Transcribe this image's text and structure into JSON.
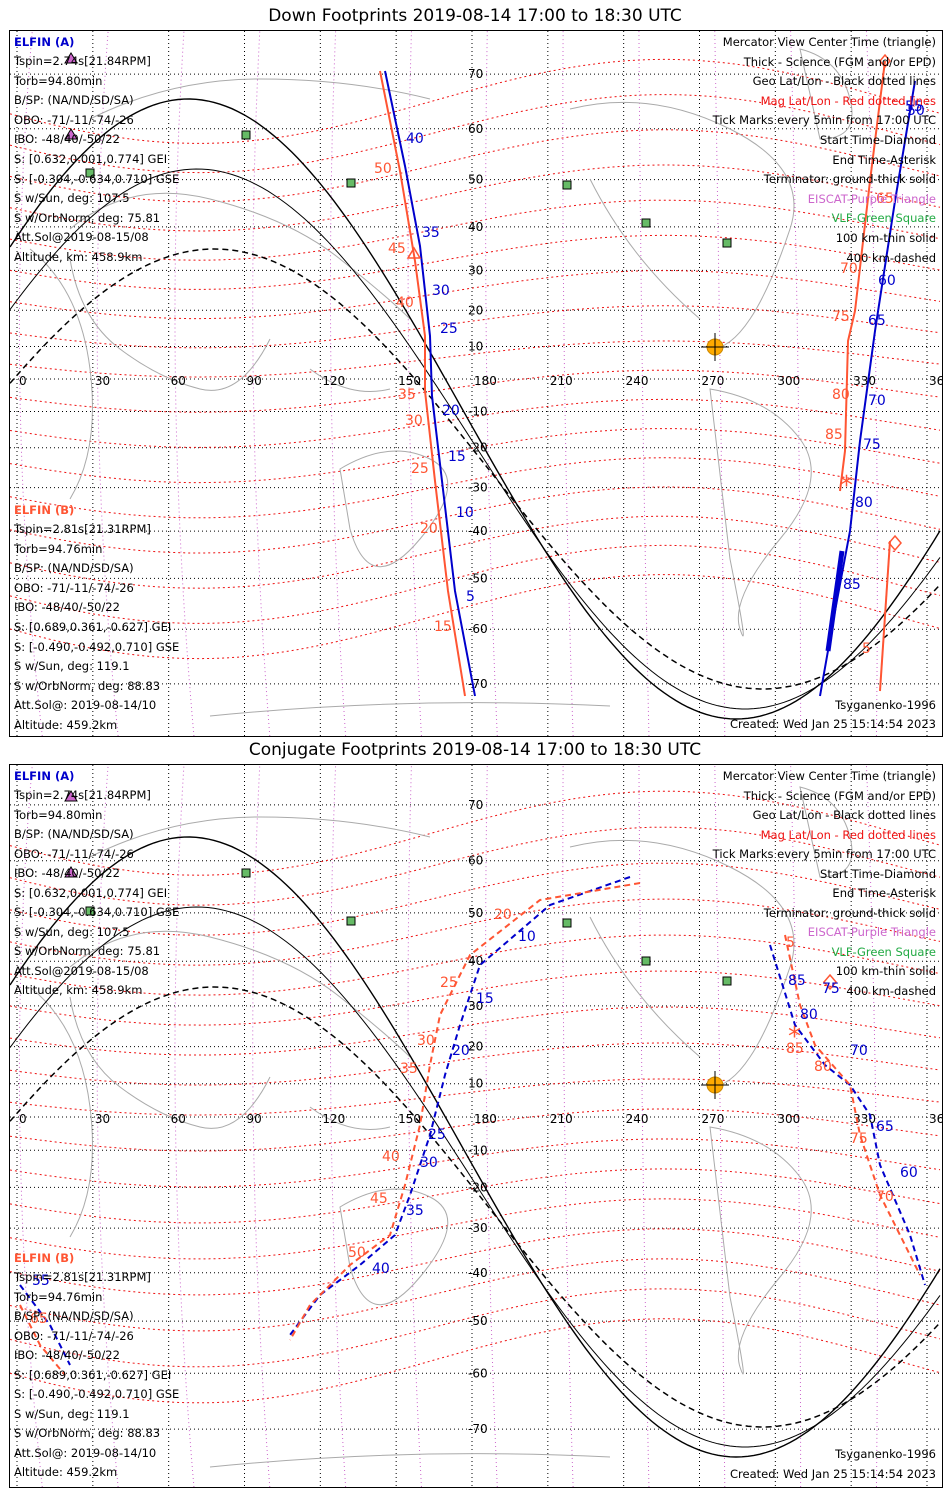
{
  "panels": [
    {
      "title": "Down Footprints 2019-08-14 17:00 to 18:30 UTC",
      "elfin_a": {
        "label": "ELFIN (A)",
        "lines": [
          "Tspin=2.74s[21.84RPM]",
          "Torb=94.80min",
          "B/SP: (NA/ND/SD/SA)",
          "OBO: -71/-11/-74/-26",
          "IBO: -48/40/-50/22",
          "S: [0.632,0.001,0.774] GEI",
          "S: [-0.304,-0.634,0.710] GSE",
          "S w/Sun, deg: 107.5",
          "S w/OrbNorm, deg: 75.81",
          "Att.Sol@2019-08-15/08",
          "Altitude, km: 458.9km"
        ]
      },
      "elfin_b": {
        "label": "ELFIN (B)",
        "lines": [
          "Tspin=2.81s[21.31RPM]",
          "Torb=94.76min",
          "B/SP: (NA/ND/SD/SA)",
          "OBO: -71/-11/-74/-26",
          "IBO: -48/40/-50/22",
          "S: [0.689,0.361,-0.627] GEI",
          "S: [-0.490,-0.492,0.710] GSE",
          "S w/Sun, deg: 119.1",
          "S w/OrbNorm, deg: 88.83",
          "Att.Sol@: 2019-08-14/10",
          "Altitude: 459.2km"
        ]
      },
      "legend": [
        "Mercator View Center Time (triangle)",
        "Thick - Science (FGM and/or EPD)",
        "Geo Lat/Lon - Black dotted lines",
        "Mag Lat/Lon - Red dotted lines",
        "Tick Marks every 5min from 17:00 UTC",
        "Start Time-Diamond",
        "End Time-Asterisk",
        "Terminator: ground-thick solid",
        "EISCAT-Purple Triangle",
        "VLF-Green Square",
        "100 km-thin solid",
        "400 km-dashed"
      ],
      "model": "Tsyganenko-1996",
      "created": "Created: Wed Jan 25 15:14:54 2023"
    },
    {
      "title": "Conjugate Footprints 2019-08-14 17:00 to 18:30 UTC",
      "elfin_a": {
        "label": "ELFIN (A)",
        "lines": [
          "Tspin=2.74s[21.84RPM]",
          "Torb=94.80min",
          "B/SP: (NA/ND/SD/SA)",
          "OBO: -71/-11/-74/-26",
          "IBO: -48/40/-50/22",
          "S: [0.632,0.001,0.774] GEI",
          "S: [-0.304,-0.634,0.710] GSE",
          "S w/Sun, deg: 107.5",
          "S w/OrbNorm, deg: 75.81",
          "Att.Sol@2019-08-15/08",
          "Altitude, km: 458.9km"
        ]
      },
      "elfin_b": {
        "label": "ELFIN (B)",
        "lines": [
          "Tspin=2.81s[21.31RPM]",
          "Torb=94.76min",
          "B/SP: (NA/ND/SD/SA)",
          "OBO: -71/-11/-74/-26",
          "IBO: -48/40/-50/22",
          "S: [0.689,0.361,-0.627] GEI",
          "S: [-0.490,-0.492,0.710] GSE",
          "S w/Sun, deg: 119.1",
          "S w/OrbNorm, deg: 88.83",
          "Att.Sol@: 2019-08-14/10",
          "Altitude: 459.2km"
        ]
      },
      "legend": [
        "Mercator View Center Time (triangle)",
        "Thick - Science (FGM and/or EPD)",
        "Geo Lat/Lon - Black dotted lines",
        "Mag Lat/Lon - Red dotted lines",
        "Tick Marks every 5min from 17:00 UTC",
        "Start Time-Diamond",
        "End Time-Asterisk",
        "Terminator: ground-thick solid",
        "EISCAT-Purple Triangle",
        "VLF-Green Square",
        "100 km-thin solid",
        "400 km-dashed"
      ],
      "model": "Tsyganenko-1996",
      "created": "Created: Wed Jan 25 15:14:54 2023"
    }
  ],
  "map": {
    "lon_ticks": [
      "0",
      "30",
      "60",
      "90",
      "120",
      "150",
      "180",
      "210",
      "240",
      "270",
      "300",
      "330",
      "360"
    ],
    "lat_ticks": [
      "70",
      "60",
      "50",
      "40",
      "30",
      "20",
      "10",
      "-10",
      "-20",
      "-30",
      "-40",
      "-50",
      "-60",
      "-70"
    ]
  },
  "colors": {
    "elfin_a": "#0000cc",
    "elfin_b": "#ff5533",
    "mag_grid": "#ee1111",
    "geo_grid": "#000000",
    "eiscat": "#cc66cc",
    "vlf": "#22aa44",
    "sun": "#ffaa00"
  },
  "tracks": {
    "down": {
      "a_ticks": [
        "40",
        "35",
        "30",
        "25",
        "20",
        "15",
        "10",
        "5",
        "55",
        "60",
        "65",
        "70",
        "75",
        "80",
        "85",
        "50"
      ],
      "b_ticks": [
        "50",
        "45",
        "40",
        "35",
        "30",
        "25",
        "20",
        "15",
        "65",
        "70",
        "75",
        "80",
        "85",
        "5"
      ]
    },
    "conj": {
      "a_ticks": [
        "10",
        "15",
        "20",
        "25",
        "30",
        "35",
        "40",
        "55",
        "60",
        "65",
        "70",
        "75",
        "80",
        "85"
      ],
      "b_ticks": [
        "20",
        "25",
        "30",
        "35",
        "40",
        "45",
        "50",
        "5",
        "65",
        "70",
        "75",
        "80",
        "85"
      ]
    }
  }
}
